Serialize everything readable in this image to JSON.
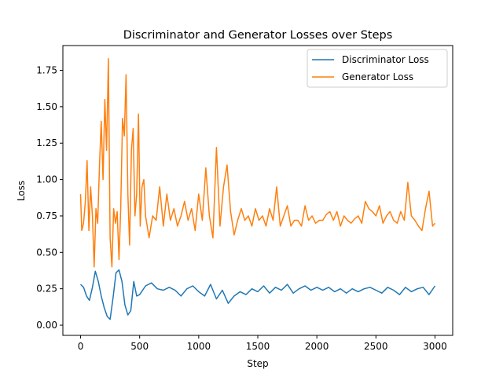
{
  "chart_data": {
    "type": "line",
    "title": "Discriminator and Generator Losses over Steps",
    "xlabel": "Step",
    "ylabel": "Loss",
    "xlim": [
      -150,
      3150
    ],
    "ylim": [
      -0.07,
      1.92
    ],
    "xticks": [
      0,
      500,
      1000,
      1500,
      2000,
      2500,
      3000
    ],
    "xtick_labels": [
      "0",
      "500",
      "1000",
      "1500",
      "2000",
      "2500",
      "3000"
    ],
    "yticks": [
      0.0,
      0.25,
      0.5,
      0.75,
      1.0,
      1.25,
      1.5,
      1.75
    ],
    "ytick_labels": [
      "0.00",
      "0.25",
      "0.50",
      "0.75",
      "1.00",
      "1.25",
      "1.50",
      "1.75"
    ],
    "grid": false,
    "legend_position": "upper right",
    "series": [
      {
        "name": "Discriminator Loss",
        "color": "#1f77b4",
        "x": [
          0,
          25,
          50,
          75,
          100,
          125,
          150,
          175,
          200,
          225,
          250,
          275,
          300,
          325,
          350,
          375,
          400,
          425,
          450,
          475,
          500,
          550,
          600,
          650,
          700,
          750,
          800,
          850,
          900,
          950,
          1000,
          1050,
          1100,
          1150,
          1200,
          1250,
          1300,
          1350,
          1400,
          1450,
          1500,
          1550,
          1600,
          1650,
          1700,
          1750,
          1800,
          1850,
          1900,
          1950,
          2000,
          2050,
          2100,
          2150,
          2200,
          2250,
          2300,
          2350,
          2400,
          2450,
          2500,
          2550,
          2600,
          2650,
          2700,
          2750,
          2800,
          2850,
          2900,
          2950,
          3000
        ],
        "y": [
          0.28,
          0.26,
          0.2,
          0.17,
          0.26,
          0.37,
          0.3,
          0.2,
          0.12,
          0.06,
          0.04,
          0.19,
          0.36,
          0.38,
          0.3,
          0.14,
          0.07,
          0.1,
          0.3,
          0.2,
          0.21,
          0.27,
          0.29,
          0.25,
          0.24,
          0.26,
          0.24,
          0.2,
          0.25,
          0.27,
          0.23,
          0.2,
          0.28,
          0.18,
          0.24,
          0.15,
          0.2,
          0.23,
          0.21,
          0.25,
          0.23,
          0.27,
          0.22,
          0.26,
          0.24,
          0.28,
          0.22,
          0.25,
          0.27,
          0.24,
          0.26,
          0.24,
          0.26,
          0.23,
          0.25,
          0.22,
          0.25,
          0.23,
          0.25,
          0.26,
          0.24,
          0.22,
          0.26,
          0.24,
          0.21,
          0.26,
          0.23,
          0.25,
          0.26,
          0.21,
          0.27
        ]
      },
      {
        "name": "Generator Loss",
        "color": "#ff7f0e",
        "x": [
          0,
          10,
          25,
          40,
          55,
          70,
          85,
          100,
          115,
          130,
          145,
          160,
          175,
          190,
          205,
          220,
          235,
          250,
          265,
          280,
          295,
          310,
          325,
          340,
          355,
          370,
          385,
          400,
          415,
          430,
          445,
          460,
          475,
          490,
          505,
          520,
          535,
          550,
          580,
          610,
          640,
          670,
          700,
          730,
          760,
          790,
          820,
          850,
          880,
          910,
          940,
          970,
          1000,
          1030,
          1060,
          1090,
          1120,
          1150,
          1180,
          1210,
          1240,
          1270,
          1300,
          1330,
          1360,
          1390,
          1420,
          1450,
          1480,
          1510,
          1540,
          1570,
          1600,
          1630,
          1660,
          1690,
          1720,
          1750,
          1780,
          1810,
          1840,
          1870,
          1900,
          1930,
          1960,
          1990,
          2020,
          2050,
          2080,
          2110,
          2140,
          2170,
          2200,
          2230,
          2260,
          2290,
          2320,
          2350,
          2380,
          2410,
          2440,
          2470,
          2500,
          2530,
          2560,
          2590,
          2620,
          2650,
          2680,
          2710,
          2740,
          2770,
          2800,
          2830,
          2860,
          2890,
          2920,
          2950,
          2980,
          3000
        ],
        "y": [
          0.9,
          0.65,
          0.7,
          0.85,
          1.13,
          0.65,
          0.95,
          0.75,
          0.4,
          0.8,
          0.7,
          1.1,
          1.4,
          1.0,
          1.55,
          1.2,
          1.83,
          0.6,
          0.4,
          0.8,
          0.7,
          0.78,
          0.45,
          0.8,
          1.42,
          1.3,
          1.72,
          0.9,
          0.55,
          1.2,
          1.35,
          0.75,
          0.9,
          1.45,
          0.68,
          0.95,
          1.0,
          0.75,
          0.6,
          0.75,
          0.72,
          0.95,
          0.68,
          0.9,
          0.72,
          0.8,
          0.68,
          0.75,
          0.85,
          0.72,
          0.8,
          0.65,
          0.9,
          0.72,
          1.08,
          0.75,
          0.6,
          1.22,
          0.68,
          0.95,
          1.1,
          0.78,
          0.62,
          0.72,
          0.8,
          0.72,
          0.75,
          0.68,
          0.8,
          0.72,
          0.75,
          0.68,
          0.8,
          0.72,
          0.95,
          0.68,
          0.75,
          0.82,
          0.68,
          0.72,
          0.72,
          0.68,
          0.82,
          0.72,
          0.75,
          0.7,
          0.72,
          0.72,
          0.76,
          0.78,
          0.72,
          0.78,
          0.68,
          0.75,
          0.72,
          0.7,
          0.73,
          0.75,
          0.7,
          0.85,
          0.8,
          0.78,
          0.75,
          0.82,
          0.7,
          0.75,
          0.78,
          0.72,
          0.7,
          0.78,
          0.72,
          0.98,
          0.75,
          0.72,
          0.68,
          0.65,
          0.8,
          0.92,
          0.68,
          0.7
        ]
      }
    ]
  }
}
